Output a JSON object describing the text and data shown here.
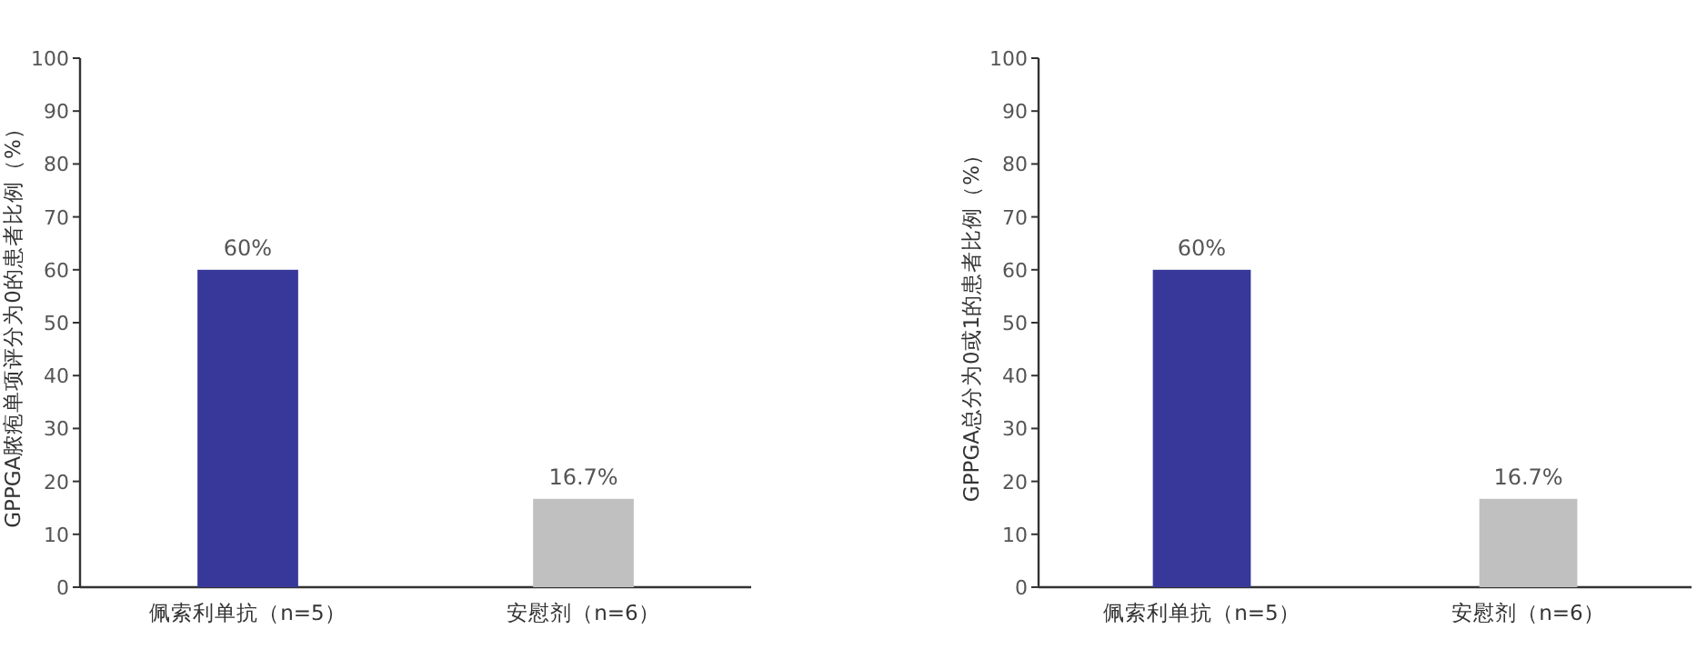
{
  "chart_data": [
    {
      "type": "bar",
      "ylabel": "GPPGA脓疱单项评分为0的患者比例（%）",
      "categories": [
        "佩索利单抗（n=5）",
        "安慰剂（n=6）"
      ],
      "values": [
        60,
        16.7
      ],
      "colors": [
        "#37389a",
        "#c0c0c0"
      ],
      "value_labels": [
        "60%",
        "16.7%"
      ],
      "ylim": [
        0,
        100
      ],
      "yticks": [
        0,
        10,
        20,
        30,
        40,
        50,
        60,
        70,
        80,
        90,
        100
      ]
    },
    {
      "type": "bar",
      "ylabel": "GPPGA总分为0或1的患者比例（%）",
      "categories": [
        "佩索利单抗（n=5）",
        "安慰剂（n=6）"
      ],
      "values": [
        60,
        16.7
      ],
      "colors": [
        "#37389a",
        "#c0c0c0"
      ],
      "value_labels": [
        "60%",
        "16.7%"
      ],
      "ylim": [
        0,
        100
      ],
      "yticks": [
        0,
        10,
        20,
        30,
        40,
        50,
        60,
        70,
        80,
        90,
        100
      ]
    }
  ]
}
